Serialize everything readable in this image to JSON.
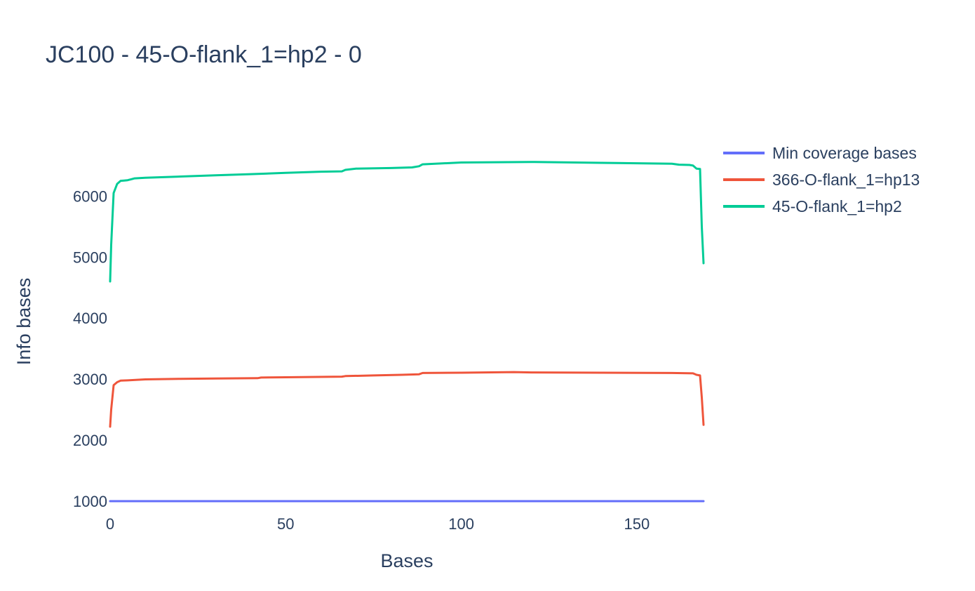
{
  "chart_data": {
    "type": "line",
    "title": "JC100 - 45-O-flank_1=hp2 - 0",
    "xlabel": "Bases",
    "ylabel": "Info bases",
    "xlim": [
      0,
      169
    ],
    "ylim": [
      850,
      7350
    ],
    "x_ticks": [
      0,
      50,
      100,
      150
    ],
    "y_ticks": [
      1000,
      2000,
      3000,
      4000,
      5000,
      6000
    ],
    "grid": false,
    "legend_position": "top-right",
    "series": [
      {
        "name": "Min coverage bases",
        "color": "#636efa",
        "x": [
          0,
          169
        ],
        "y": [
          1000,
          1000
        ]
      },
      {
        "name": "366-O-flank_1=hp13",
        "color": "#EF553B",
        "x": [
          0,
          0.3,
          1,
          2,
          3,
          5,
          10,
          20,
          30,
          42,
          43,
          50,
          66,
          67,
          75,
          83,
          88,
          89,
          100,
          115,
          120,
          140,
          160,
          166,
          167,
          168,
          168.5,
          169
        ],
        "y": [
          2220,
          2500,
          2900,
          2950,
          2975,
          2980,
          2995,
          3005,
          3010,
          3015,
          3025,
          3030,
          3040,
          3050,
          3060,
          3070,
          3080,
          3100,
          3105,
          3115,
          3110,
          3105,
          3100,
          3095,
          3070,
          3060,
          2700,
          2250
        ]
      },
      {
        "name": "45-O-flank_1=hp2",
        "color": "#00cc96",
        "x": [
          0,
          0.3,
          1,
          2,
          3,
          4,
          5,
          6,
          7,
          10,
          20,
          30,
          40,
          50,
          60,
          66,
          67,
          70,
          80,
          86,
          88,
          89,
          100,
          110,
          120,
          140,
          160,
          162,
          165,
          166,
          167,
          168,
          168.5,
          169
        ],
        "y": [
          4600,
          5200,
          6050,
          6200,
          6250,
          6255,
          6260,
          6275,
          6290,
          6300,
          6320,
          6340,
          6360,
          6380,
          6400,
          6405,
          6430,
          6450,
          6460,
          6470,
          6490,
          6520,
          6550,
          6555,
          6560,
          6545,
          6530,
          6515,
          6510,
          6500,
          6450,
          6445,
          5500,
          4900
        ]
      }
    ]
  }
}
